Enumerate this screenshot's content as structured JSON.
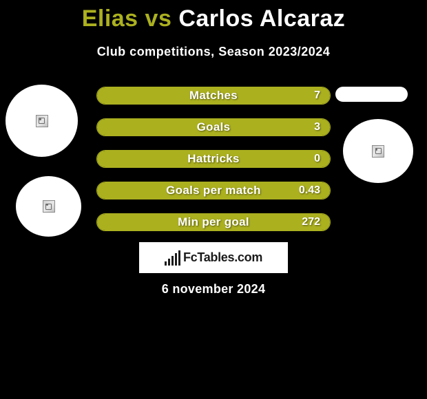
{
  "title": {
    "player1": "Elias",
    "vs": "vs",
    "player2": "Carlos Alcaraz"
  },
  "subtitle": "Club competitions, Season 2023/2024",
  "stats": [
    {
      "label": "Matches",
      "value": "7",
      "fill_pct": 100
    },
    {
      "label": "Goals",
      "value": "3",
      "fill_pct": 100
    },
    {
      "label": "Hattricks",
      "value": "0",
      "fill_pct": 100
    },
    {
      "label": "Goals per match",
      "value": "0.43",
      "fill_pct": 100
    },
    {
      "label": "Min per goal",
      "value": "272",
      "fill_pct": 100
    }
  ],
  "logo_text": "FcTables.com",
  "date": "6 november 2024",
  "colors": {
    "background": "#000000",
    "accent": "#abb01f",
    "text": "#ffffff",
    "logo_bg": "#ffffff",
    "logo_fg": "#1a1a1a"
  },
  "logo_bars": [
    6,
    10,
    14,
    18,
    22
  ]
}
